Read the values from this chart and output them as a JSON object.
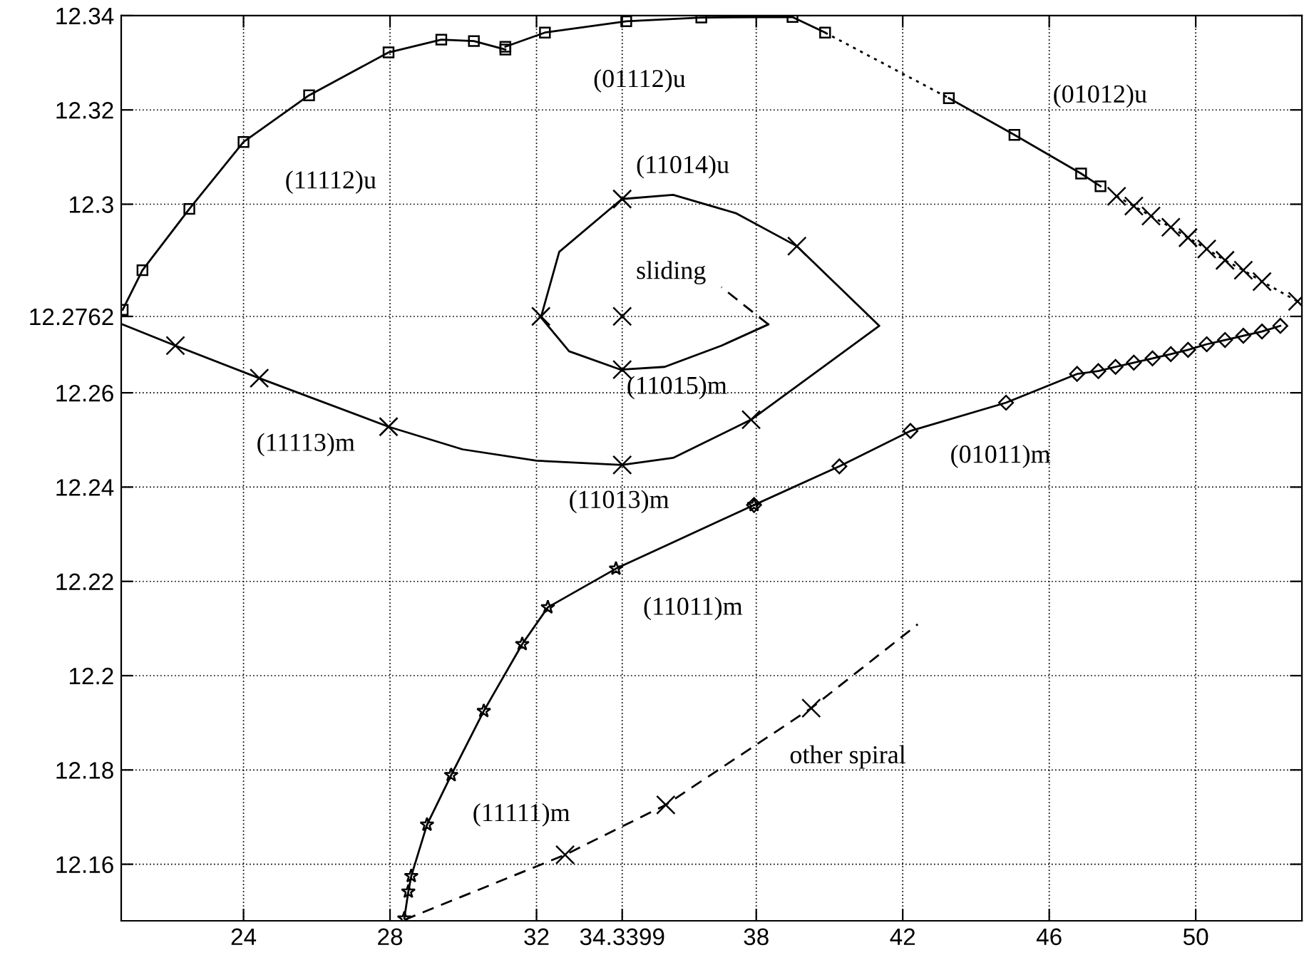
{
  "chart_data": {
    "type": "line",
    "xlim": [
      20.66,
      52.9
    ],
    "ylim": [
      12.148,
      12.34
    ],
    "xticks": [
      24,
      28,
      32,
      34.3399,
      38,
      42,
      46,
      50
    ],
    "yticks": [
      12.16,
      12.18,
      12.2,
      12.22,
      12.24,
      12.26,
      12.2762,
      12.3,
      12.32,
      12.34
    ],
    "grid": true,
    "series": [
      {
        "marker": "square",
        "line_style": "solid",
        "color": "#000000",
        "x": [
          20.7,
          21.24,
          22.52,
          24.0,
          25.79,
          27.96,
          29.4,
          30.29,
          31.15
        ],
        "values": [
          12.2776,
          12.286,
          12.299,
          12.3132,
          12.3231,
          12.3322,
          12.3349,
          12.3346,
          12.3328
        ]
      },
      {
        "marker": "square",
        "line_style": "solid",
        "color": "#000000",
        "x": [
          31.15,
          32.23,
          34.45,
          36.5,
          38.99,
          39.88
        ],
        "values": [
          12.3334,
          12.3364,
          12.3388,
          12.3396,
          12.3397,
          12.3364
        ]
      },
      {
        "line_style": "dotted",
        "color": "#000000",
        "x": [
          39.88,
          43.26
        ],
        "values": [
          12.3364,
          12.3225
        ]
      },
      {
        "marker": "square",
        "line_style": "solid",
        "color": "#000000",
        "x": [
          43.26,
          45.05,
          46.87,
          47.4
        ],
        "values": [
          12.3225,
          12.3147,
          12.3065,
          12.3038
        ]
      },
      {
        "marker": "cross",
        "line_style": "dotted",
        "color": "#000000",
        "x": [
          47.84,
          48.31,
          48.78,
          49.32,
          49.79,
          50.3,
          50.8,
          51.3,
          51.81,
          52.78
        ],
        "values": [
          12.3017,
          12.2996,
          12.2975,
          12.2951,
          12.2929,
          12.2905,
          12.2881,
          12.286,
          12.2836,
          12.2794
        ]
      },
      {
        "line_style": "solid",
        "color": "#000000",
        "x": [
          20.7,
          22.14,
          24.43,
          27.96,
          29.98,
          32.0,
          34.33,
          35.73,
          37.86,
          41.36,
          39.11,
          37.44,
          35.73,
          34.33,
          32.62,
          32.12,
          32.89,
          34.3,
          35.5,
          37.05,
          38.33
        ],
        "values": [
          12.2745,
          12.27,
          12.2631,
          12.2528,
          12.248,
          12.2456,
          12.2447,
          12.2462,
          12.2543,
          12.2742,
          12.2911,
          12.2981,
          12.302,
          12.3011,
          12.2899,
          12.276,
          12.2688,
          12.2649,
          12.2655,
          12.27,
          12.2745
        ]
      },
      {
        "line_style": "dashed",
        "color": "#000000",
        "x": [
          38.33,
          37.05
        ],
        "values": [
          12.2745,
          12.2824
        ]
      },
      {
        "line_style": "dashed",
        "color": "#000000",
        "x": [
          28.39,
          32.78,
          35.53,
          39.5,
          42.41
        ],
        "values": [
          12.1482,
          12.162,
          12.1726,
          12.1931,
          12.2109
        ]
      },
      {
        "type": "scatter",
        "marker": "cross",
        "color": "#000000",
        "x": [
          22.14,
          24.43,
          27.96,
          34.3399,
          37.86,
          39.11,
          34.3399,
          32.12,
          34.3399,
          34.3399,
          32.78,
          35.53,
          39.5
        ],
        "values": [
          12.27,
          12.2631,
          12.2528,
          12.2447,
          12.2543,
          12.2911,
          12.3011,
          12.2762,
          12.2762,
          12.2649,
          12.162,
          12.1726,
          12.1931
        ]
      },
      {
        "marker": "star",
        "line_style": "solid",
        "color": "#000000",
        "x": [
          28.39,
          28.5,
          28.58,
          29.01,
          29.67,
          30.56,
          31.61,
          32.31,
          34.17,
          37.94
        ],
        "values": [
          12.1485,
          12.1542,
          12.1575,
          12.1684,
          12.1789,
          12.1925,
          12.2067,
          12.2145,
          12.2227,
          12.2362
        ]
      },
      {
        "marker": "diamond",
        "line_style": "solid",
        "color": "#000000",
        "x": [
          37.94,
          40.27,
          42.21,
          44.82,
          46.76,
          47.34,
          47.81,
          48.31,
          48.82,
          49.32,
          49.79,
          50.3,
          50.8,
          51.3,
          51.81,
          52.31
        ],
        "values": [
          12.2362,
          12.2444,
          12.2519,
          12.2579,
          12.264,
          12.2646,
          12.2655,
          12.2664,
          12.2673,
          12.2682,
          12.2691,
          12.2703,
          12.2712,
          12.2721,
          12.273,
          12.2742
        ]
      }
    ],
    "annotations": [
      "(11112)u",
      "(01112)u",
      "(01012)u",
      "(11014)u",
      "sliding",
      "(11015)m",
      "(11113)m",
      "(11013)m",
      "(01011)m",
      "(11011)m",
      "(11111)m",
      "other spiral"
    ]
  }
}
